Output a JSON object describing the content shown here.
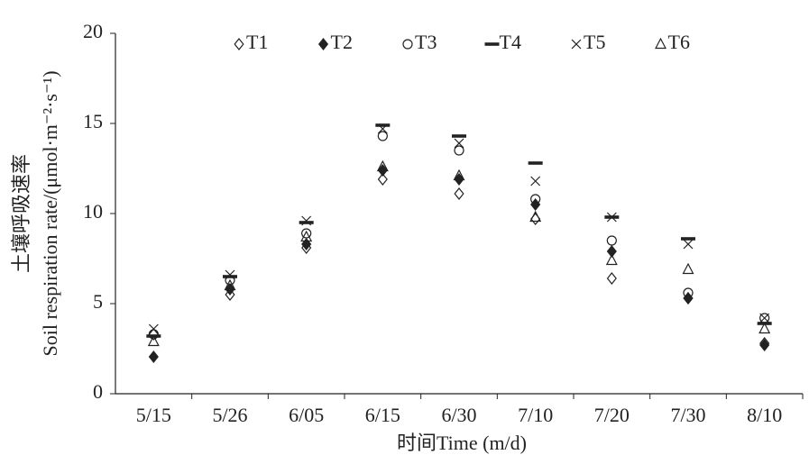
{
  "chart_data": {
    "type": "scatter",
    "xlabel": "时间Time (m/d)",
    "ylabel": [
      "土壤呼吸速率",
      "Soil respiration rate/(μmol·m⁻²·s⁻¹)"
    ],
    "categories": [
      "5/15",
      "5/26",
      "6/05",
      "6/15",
      "6/30",
      "7/10",
      "7/20",
      "7/30",
      "8/10"
    ],
    "series": [
      {
        "name": "T1",
        "color": "#222222",
        "marker": "diamond-open",
        "values": [
          3.3,
          5.5,
          8.1,
          11.9,
          11.1,
          9.7,
          6.4,
          5.3,
          2.8
        ]
      },
      {
        "name": "T2",
        "color": "#222222",
        "marker": "diamond-filled",
        "values": [
          2.05,
          5.8,
          8.3,
          12.4,
          11.9,
          10.5,
          7.9,
          5.3,
          2.7
        ]
      },
      {
        "name": "T3",
        "color": "#222222",
        "marker": "circle-open",
        "values": [
          3.3,
          6.3,
          8.9,
          14.3,
          13.5,
          10.8,
          8.5,
          5.6,
          4.2
        ]
      },
      {
        "name": "T4",
        "color": "#222222",
        "marker": "dash",
        "values": [
          3.2,
          6.5,
          9.5,
          14.9,
          14.3,
          12.8,
          9.8,
          8.6,
          3.9
        ]
      },
      {
        "name": "T5",
        "color": "#222222",
        "marker": "cross",
        "values": [
          3.6,
          6.6,
          9.6,
          14.7,
          13.9,
          11.8,
          9.8,
          8.3,
          4.2
        ]
      },
      {
        "name": "T6",
        "color": "#222222",
        "marker": "triangle-open",
        "values": [
          2.9,
          6.0,
          8.7,
          12.6,
          12.1,
          9.8,
          7.4,
          6.9,
          3.6
        ]
      }
    ],
    "ylim": [
      0,
      20
    ],
    "yticks": [
      0,
      5,
      10,
      15,
      20
    ],
    "legend": "top"
  }
}
